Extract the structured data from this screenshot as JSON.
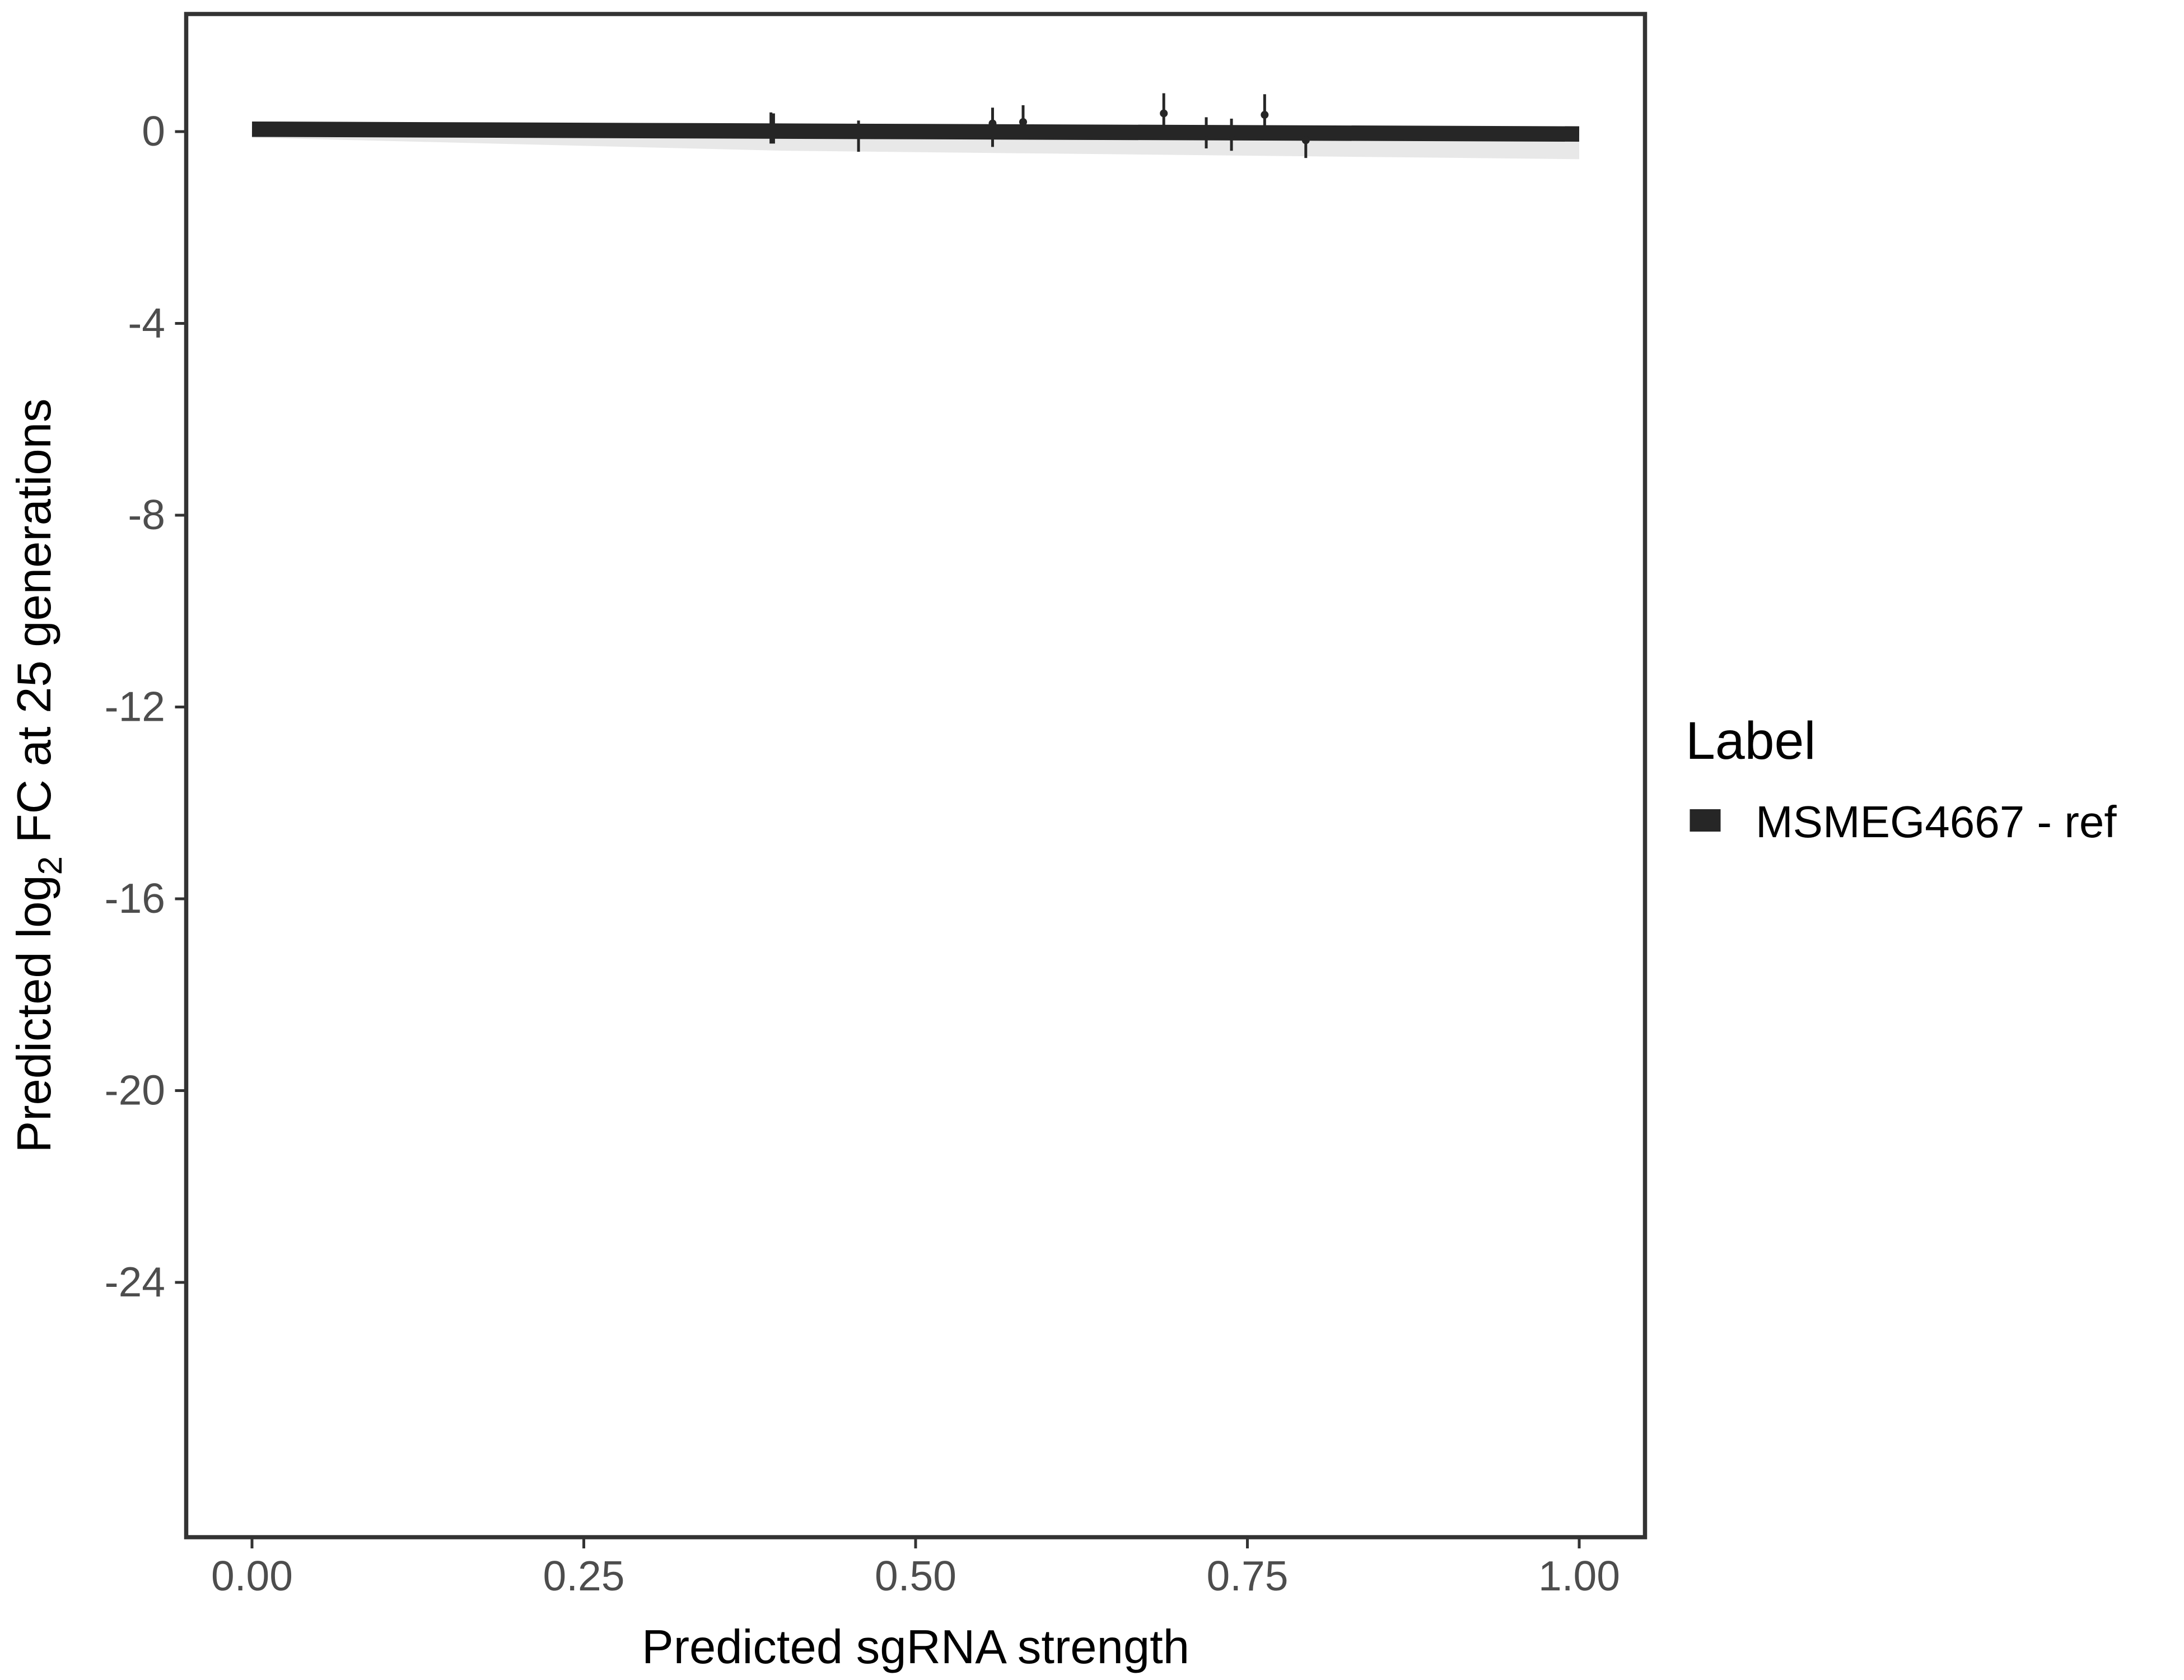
{
  "chart_data": {
    "type": "line",
    "xlabel": "Predicted sgRNA strength",
    "ylabel_parts": {
      "pre": "Predicted  log",
      "sub": "2",
      "post": " FC at 25 generations"
    },
    "xlim": [
      -0.05,
      1.05
    ],
    "ylim": [
      -29.3,
      2.45
    ],
    "x_ticks": [
      0,
      0.25,
      0.5,
      0.75,
      1
    ],
    "x_tick_labels": [
      "0.00",
      "0.25",
      "0.50",
      "0.75",
      "1.00"
    ],
    "y_ticks": [
      0,
      -4,
      -8,
      -12,
      -16,
      -20,
      -24
    ],
    "y_tick_labels": [
      "0",
      "-4",
      "-8",
      "-12",
      "-16",
      "-20",
      "-24"
    ],
    "grid": false,
    "legend": {
      "title": "Label",
      "position": "right",
      "entries": [
        "MSMEG4667 - ref"
      ]
    },
    "series": [
      {
        "name": "MSMEG4667 - ref",
        "color": "#262626",
        "fit_line": {
          "x": [
            0,
            1
          ],
          "y": [
            0.05,
            -0.05
          ]
        },
        "points": [
          {
            "x": 0.391,
            "y": 0.05,
            "lo": -0.25,
            "hi": 0.4
          },
          {
            "x": 0.393,
            "y": 0.05,
            "lo": -0.25,
            "hi": 0.38
          },
          {
            "x": 0.457,
            "y": -0.08,
            "lo": -0.42,
            "hi": 0.23
          },
          {
            "x": 0.558,
            "y": 0.17,
            "lo": -0.32,
            "hi": 0.5
          },
          {
            "x": 0.581,
            "y": 0.2,
            "lo": 0.0,
            "hi": 0.55
          },
          {
            "x": 0.687,
            "y": 0.38,
            "lo": 0.0,
            "hi": 0.8
          },
          {
            "x": 0.719,
            "y": -0.02,
            "lo": -0.35,
            "hi": 0.3
          },
          {
            "x": 0.738,
            "y": -0.05,
            "lo": -0.4,
            "hi": 0.27
          },
          {
            "x": 0.763,
            "y": 0.35,
            "lo": 0.0,
            "hi": 0.78
          },
          {
            "x": 0.794,
            "y": -0.18,
            "lo": -0.55,
            "hi": 0.0
          }
        ]
      }
    ]
  }
}
